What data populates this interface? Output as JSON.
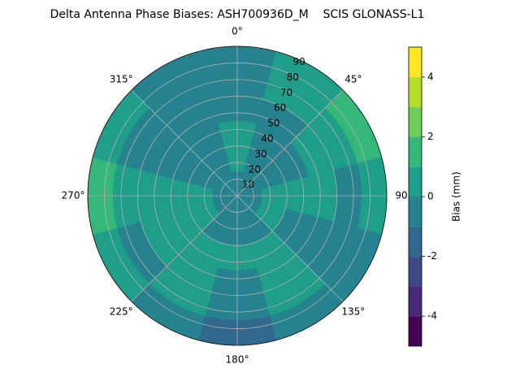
{
  "chart_data": {
    "type": "polar_contour",
    "title": "Delta Antenna Phase Biases: ASH700936D_M    SCIS GLONASS-L1",
    "colorbar_label": "Bias (mm)",
    "levels": [
      -5,
      -4,
      -3,
      -2,
      -1,
      0,
      1,
      2,
      3,
      4,
      5
    ],
    "colors": [
      "#440154",
      "#482878",
      "#3e4989",
      "#31688e",
      "#26828e",
      "#1f9e89",
      "#35b779",
      "#6ece58",
      "#b5de2b",
      "#fde725"
    ],
    "clim": [
      -5,
      5
    ],
    "cticks": [
      -4,
      -2,
      0,
      2,
      4
    ],
    "rlim": [
      0,
      90
    ],
    "rticks": [
      10,
      20,
      30,
      40,
      50,
      60,
      70,
      80,
      90
    ],
    "thetaticks": [
      {
        "value": 0,
        "label": "0°"
      },
      {
        "value": 45,
        "label": "45°"
      },
      90,
      {
        "value": 135,
        "label": "135°"
      },
      {
        "value": 180,
        "label": "180°"
      },
      {
        "value": 225,
        "label": "225°"
      },
      {
        "value": 270,
        "label": "270°"
      },
      {
        "value": 315,
        "label": "315°"
      }
    ],
    "grid": true,
    "azimuth": [
      0,
      30,
      60,
      90,
      120,
      150,
      180,
      210,
      240,
      270,
      300,
      330
    ],
    "zenith_edges": [
      0,
      15,
      30,
      45,
      60,
      75,
      90
    ],
    "values": [
      [
        -0.5,
        -0.5,
        -0.5,
        -0.5,
        -0.5,
        -0.5,
        -0.5,
        -0.5,
        -0.5,
        -0.5,
        -0.5,
        -0.5
      ],
      [
        0.5,
        -0.5,
        -0.5,
        0.5,
        0.5,
        -0.5,
        -0.5,
        -0.5,
        0.5,
        0.5,
        -0.5,
        -0.5
      ],
      [
        0.5,
        -0.5,
        -0.5,
        0.5,
        -0.5,
        0.5,
        0.5,
        0.5,
        0.5,
        0.5,
        -0.5,
        -0.5
      ],
      [
        -0.5,
        -0.5,
        0.5,
        0.5,
        -0.5,
        0.5,
        -0.5,
        0.5,
        0.5,
        0.5,
        -0.5,
        -0.5
      ],
      [
        -0.5,
        0.5,
        0.5,
        -0.5,
        -0.5,
        0.5,
        -0.5,
        0.5,
        -0.5,
        0.5,
        -0.5,
        -0.5
      ],
      [
        -0.5,
        0.5,
        1.5,
        0.5,
        -0.5,
        -0.5,
        -1.5,
        -0.5,
        0.5,
        1.5,
        0.5,
        -0.5
      ]
    ]
  }
}
